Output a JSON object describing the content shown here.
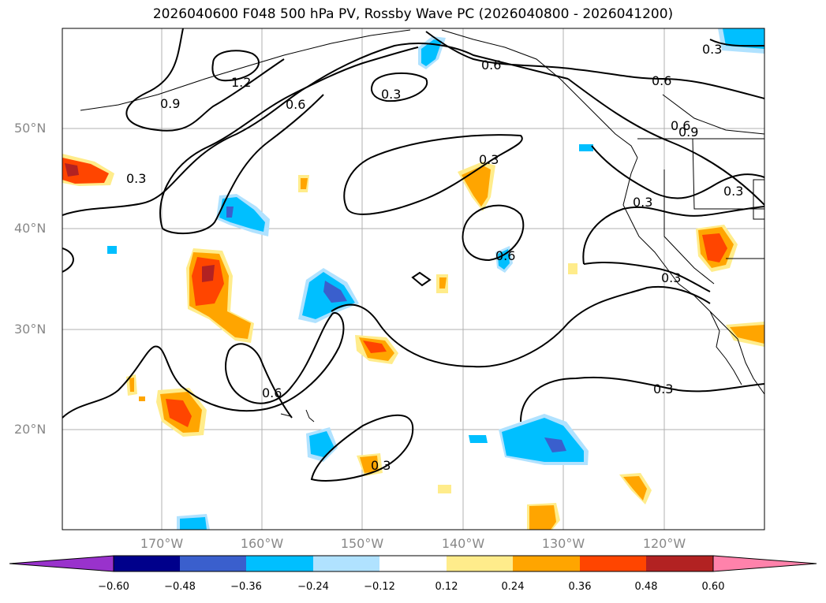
{
  "title": "2026040600 F048 500 hPa PV, Rossby Wave PC (2026040800 - 2026041200)",
  "lat_labels": [
    "50°N",
    "40°N",
    "30°N",
    "20°N"
  ],
  "lon_labels": [
    "170°W",
    "160°W",
    "150°W",
    "140°W",
    "130°W",
    "120°W"
  ],
  "contour_labels": [
    "1.2",
    "0.9",
    "0.6",
    "0.3",
    "0.6",
    "0.3",
    "0.6",
    "0.6",
    "0.9",
    "0.3",
    "0.3",
    "0.3",
    "0.6",
    "0.3",
    "0.3",
    "0.6",
    "0.3",
    "0.3"
  ],
  "colorbar": {
    "ticks": [
      "−0.60",
      "−0.48",
      "−0.36",
      "−0.24",
      "−0.12",
      "0.12",
      "0.24",
      "0.36",
      "0.48",
      "0.60"
    ],
    "colors": [
      "#9932CC",
      "#00008B",
      "#3A5FCD",
      "#00BFFF",
      "#B0E2FF",
      "#FFFFFF",
      "#FFEC8B",
      "#FFA500",
      "#FF4500",
      "#B22222",
      "#FF82AB"
    ]
  },
  "colors": {
    "positive_strong": "#B22222",
    "positive_mid": "#FF4500",
    "positive_weak": "#FFA500",
    "positive_faint": "#FFEC8B",
    "negative_faint": "#B0E2FF",
    "negative_weak": "#00BFFF",
    "negative_mid": "#3A5FCD"
  }
}
